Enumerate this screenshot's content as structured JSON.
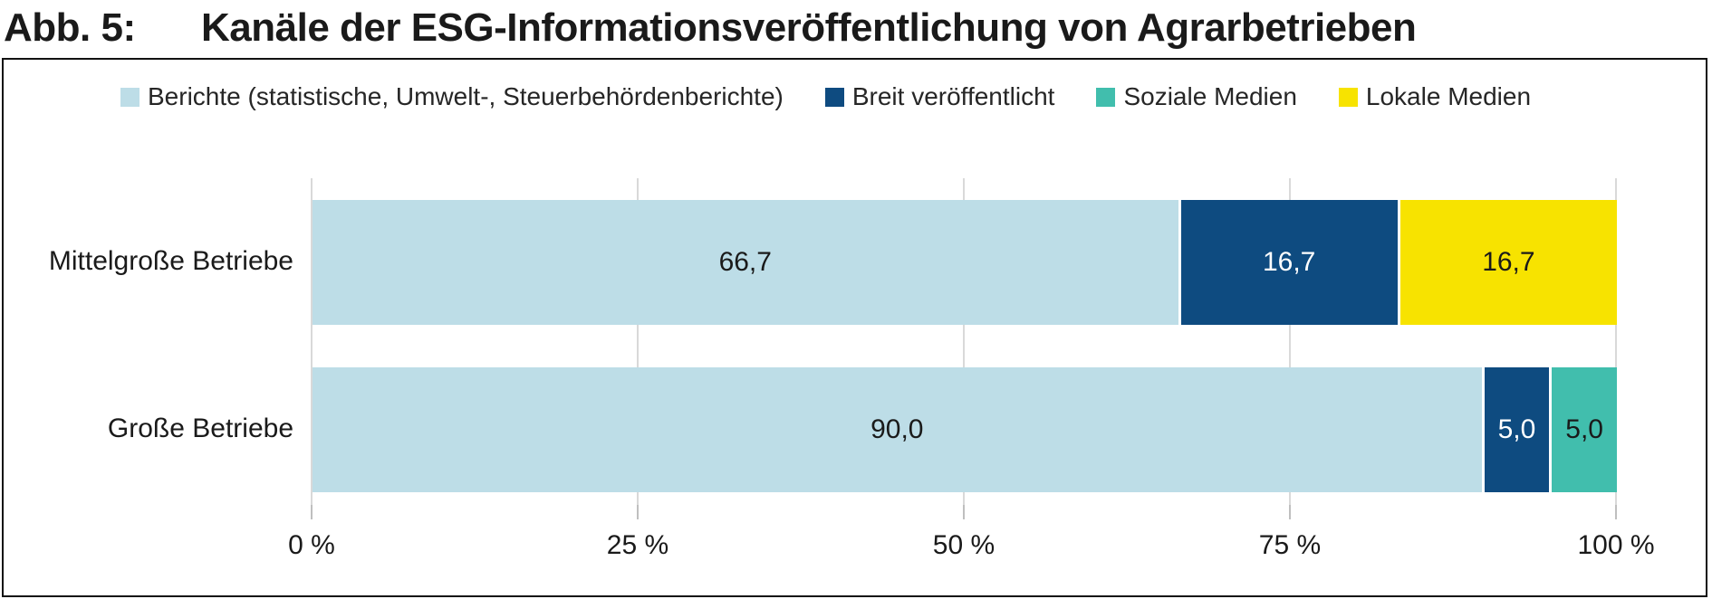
{
  "title": {
    "prefix": "Abb. 5:",
    "text": "Kanäle der ESG-Informationsveröffentlichung von Agrarbetrieben"
  },
  "legend": [
    {
      "label": "Berichte (statistische, Umwelt-, Steuerbehördenberichte)",
      "color": "#BDDDE7"
    },
    {
      "label": "Breit veröffentlicht",
      "color": "#0E4B80"
    },
    {
      "label": "Soziale Medien",
      "color": "#41BEAD"
    },
    {
      "label": "Lokale Medien",
      "color": "#F7E300"
    }
  ],
  "chart_data": {
    "type": "bar",
    "orientation": "horizontal",
    "stacked": true,
    "title": "Kanäle der ESG-Informationsveröffentlichung von Agrarbetrieben",
    "categories": [
      "Mittelgroße Betriebe",
      "Große Betriebe"
    ],
    "series": [
      {
        "name": "Berichte (statistische, Umwelt-, Steuerbehördenberichte)",
        "color": "#BDDDE7",
        "label_color": "#1a1a1a",
        "values": [
          66.7,
          90.0
        ],
        "labels": [
          "66,7",
          "90,0"
        ]
      },
      {
        "name": "Breit veröffentlicht",
        "color": "#0E4B80",
        "label_color": "#ffffff",
        "values": [
          16.7,
          5.0
        ],
        "labels": [
          "16,7",
          "5,0"
        ]
      },
      {
        "name": "Soziale Medien",
        "color": "#41BEAD",
        "label_color": "#1a1a1a",
        "values": [
          0,
          5.0
        ],
        "labels": [
          "",
          "5,0"
        ]
      },
      {
        "name": "Lokale Medien",
        "color": "#F7E300",
        "label_color": "#1a1a1a",
        "values": [
          16.7,
          0
        ],
        "labels": [
          "16,7",
          ""
        ]
      }
    ],
    "xlim": [
      0,
      100
    ],
    "x_tick_labels": [
      "0 %",
      "25 %",
      "50 %",
      "75 %",
      "100 %"
    ],
    "x_tick_values": [
      0,
      25,
      50,
      75,
      100
    ],
    "grid": true,
    "legend_position": "top"
  }
}
